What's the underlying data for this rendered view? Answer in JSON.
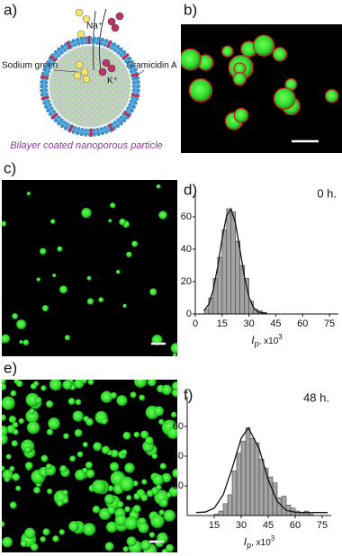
{
  "panel_labels": [
    "a)",
    "b)",
    "c)",
    "d)",
    "e)",
    "f)"
  ],
  "schematic": {
    "ion_na": "Na⁺",
    "ion_k": "K⁺",
    "label_left": "Sodium green",
    "label_right": "Gramicidin A",
    "caption": "Bilayer coated nanoporous particle"
  },
  "chart_data": [
    {
      "type": "histogram",
      "annotation": "0 h.",
      "bins": [
        5,
        7.5,
        10,
        12.5,
        15,
        17.5,
        20,
        22.5,
        25,
        27.5,
        30,
        32.5,
        35,
        37.5,
        40
      ],
      "values": [
        3,
        10,
        22,
        35,
        52,
        65,
        63,
        45,
        30,
        22,
        8,
        3,
        2,
        1
      ],
      "color": "#a3a3a3",
      "xlim": [
        0,
        80
      ],
      "ylim": [
        0,
        75
      ],
      "xticks": [
        0,
        15,
        30,
        45,
        60,
        75
      ],
      "yticks": [
        0,
        20,
        40,
        60
      ],
      "x_label": {
        "symbol": "I",
        "subscript": "p",
        "suffix": ", x10",
        "exponent": "3"
      },
      "fit": {
        "x": [
          5,
          7.5,
          10,
          12.5,
          15,
          17.5,
          20,
          22.5,
          25,
          27.5,
          30,
          32.5,
          35,
          40
        ],
        "values": [
          2.0,
          6.0,
          14.6,
          28.9,
          46.5,
          60.8,
          64.8,
          56.0,
          39.4,
          22.6,
          10.5,
          4.0,
          1.2,
          0.1
        ]
      }
    },
    {
      "type": "histogram",
      "annotation": "48 h.",
      "bins": [
        15,
        17.5,
        20,
        22.5,
        25,
        27.5,
        30,
        32.5,
        35,
        37.5,
        40,
        42.5,
        45,
        47.5,
        50,
        52.5,
        55,
        57.5,
        60,
        62.5,
        65,
        67.5,
        70
      ],
      "values": [
        1,
        3,
        8,
        14,
        30,
        42,
        50,
        59,
        52,
        49,
        38,
        32,
        26,
        22,
        12,
        13,
        7,
        5,
        3,
        2,
        3,
        1
      ],
      "color": "#a3a3a3",
      "xlim": [
        0,
        80
      ],
      "ylim": [
        0,
        80
      ],
      "xticks": [
        15,
        30,
        45,
        60,
        75
      ],
      "yticks": [
        20,
        40,
        60
      ],
      "x_label": {
        "symbol": "I",
        "subscript": "p",
        "suffix": ", x10",
        "exponent": "3"
      },
      "fit": {
        "x": [
          5,
          10,
          15,
          20,
          25,
          30,
          34,
          40,
          45,
          50,
          55,
          60,
          65,
          78
        ],
        "values": [
          2.0,
          2.3,
          5.0,
          14.0,
          32.0,
          52.0,
          59.0,
          45.0,
          24.0,
          9.5,
          3.5,
          2.2,
          2.0,
          2.0
        ]
      }
    }
  ]
}
